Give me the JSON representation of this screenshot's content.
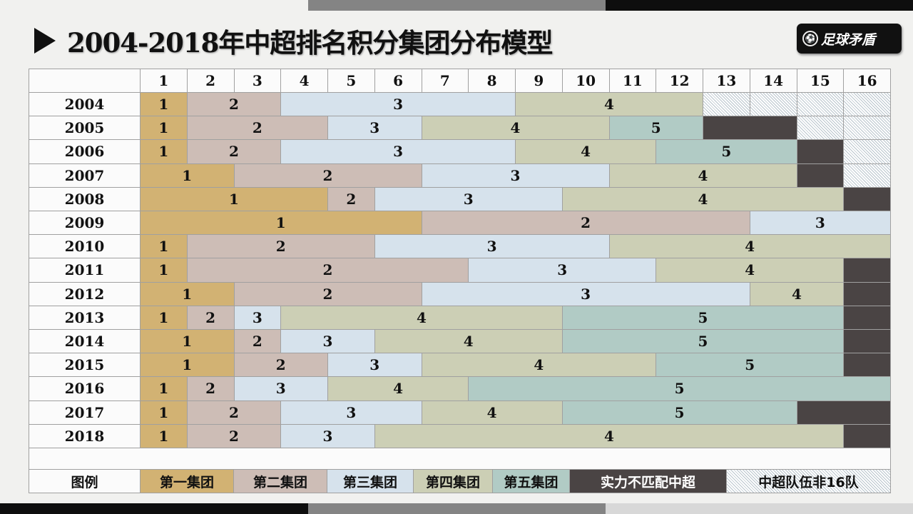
{
  "title": "2004-2018年中超排名积分集团分布模型",
  "logo": "足球矛盾",
  "colors": {
    "1": "#d2b273",
    "2": "#cdbdb6",
    "3": "#d6e2ec",
    "4": "#cccfb5",
    "5": "#b1cbc5",
    "dark": "#4a4444",
    "hatch": "hatched"
  },
  "columns": [
    "1",
    "2",
    "3",
    "4",
    "5",
    "6",
    "7",
    "8",
    "9",
    "10",
    "11",
    "12",
    "13",
    "14",
    "15",
    "16"
  ],
  "rows": [
    {
      "year": "2004",
      "segments": [
        [
          "1",
          1,
          1
        ],
        [
          "2",
          2,
          3
        ],
        [
          "3",
          4,
          8
        ],
        [
          "4",
          9,
          12
        ],
        [
          "hatch",
          13,
          13
        ],
        [
          "hatch",
          14,
          14
        ],
        [
          "hatch",
          15,
          15
        ],
        [
          "hatch",
          16,
          16
        ]
      ]
    },
    {
      "year": "2005",
      "segments": [
        [
          "1",
          1,
          1
        ],
        [
          "2",
          2,
          4
        ],
        [
          "3",
          5,
          6
        ],
        [
          "4",
          7,
          10
        ],
        [
          "5",
          11,
          12
        ],
        [
          "dark",
          13,
          14
        ],
        [
          "hatch",
          15,
          15
        ],
        [
          "hatch",
          16,
          16
        ]
      ]
    },
    {
      "year": "2006",
      "segments": [
        [
          "1",
          1,
          1
        ],
        [
          "2",
          2,
          3
        ],
        [
          "3",
          4,
          8
        ],
        [
          "4",
          9,
          11
        ],
        [
          "5",
          12,
          14
        ],
        [
          "dark",
          15,
          15
        ],
        [
          "hatch",
          16,
          16
        ]
      ]
    },
    {
      "year": "2007",
      "segments": [
        [
          "1",
          1,
          2
        ],
        [
          "2",
          3,
          6
        ],
        [
          "3",
          7,
          10
        ],
        [
          "4",
          11,
          14
        ],
        [
          "dark",
          15,
          15
        ],
        [
          "hatch",
          16,
          16
        ]
      ]
    },
    {
      "year": "2008",
      "segments": [
        [
          "1",
          1,
          4
        ],
        [
          "2",
          5,
          5
        ],
        [
          "3",
          6,
          9
        ],
        [
          "4",
          10,
          15
        ],
        [
          "dark",
          16,
          16
        ]
      ]
    },
    {
      "year": "2009",
      "segments": [
        [
          "1",
          1,
          6
        ],
        [
          "2",
          7,
          13
        ],
        [
          "3",
          14,
          16
        ]
      ]
    },
    {
      "year": "2010",
      "segments": [
        [
          "1",
          1,
          1
        ],
        [
          "2",
          2,
          5
        ],
        [
          "3",
          6,
          10
        ],
        [
          "4",
          11,
          16
        ]
      ]
    },
    {
      "year": "2011",
      "segments": [
        [
          "1",
          1,
          1
        ],
        [
          "2",
          2,
          7
        ],
        [
          "3",
          8,
          11
        ],
        [
          "4",
          12,
          15
        ],
        [
          "dark",
          16,
          16
        ]
      ]
    },
    {
      "year": "2012",
      "segments": [
        [
          "1",
          1,
          2
        ],
        [
          "2",
          3,
          6
        ],
        [
          "3",
          7,
          13
        ],
        [
          "4",
          14,
          15
        ],
        [
          "dark",
          16,
          16
        ]
      ]
    },
    {
      "year": "2013",
      "segments": [
        [
          "1",
          1,
          1
        ],
        [
          "2",
          2,
          2
        ],
        [
          "3",
          3,
          3
        ],
        [
          "4",
          4,
          9
        ],
        [
          "5",
          10,
          15
        ],
        [
          "dark",
          16,
          16
        ]
      ]
    },
    {
      "year": "2014",
      "segments": [
        [
          "1",
          1,
          2
        ],
        [
          "2",
          3,
          3
        ],
        [
          "3",
          4,
          5
        ],
        [
          "4",
          6,
          9
        ],
        [
          "5",
          10,
          15
        ],
        [
          "dark",
          16,
          16
        ]
      ]
    },
    {
      "year": "2015",
      "segments": [
        [
          "1",
          1,
          2
        ],
        [
          "2",
          3,
          4
        ],
        [
          "3",
          5,
          6
        ],
        [
          "4",
          7,
          11
        ],
        [
          "5",
          12,
          15
        ],
        [
          "dark",
          16,
          16
        ]
      ]
    },
    {
      "year": "2016",
      "segments": [
        [
          "1",
          1,
          1
        ],
        [
          "2",
          2,
          2
        ],
        [
          "3",
          3,
          4
        ],
        [
          "4",
          5,
          7
        ],
        [
          "5",
          8,
          16
        ]
      ]
    },
    {
      "year": "2017",
      "segments": [
        [
          "1",
          1,
          1
        ],
        [
          "2",
          2,
          3
        ],
        [
          "3",
          4,
          6
        ],
        [
          "4",
          7,
          9
        ],
        [
          "5",
          10,
          14
        ],
        [
          "dark",
          15,
          16
        ]
      ]
    },
    {
      "year": "2018",
      "segments": [
        [
          "1",
          1,
          1
        ],
        [
          "2",
          2,
          3
        ],
        [
          "3",
          4,
          5
        ],
        [
          "4",
          6,
          15
        ],
        [
          "dark",
          16,
          16
        ]
      ]
    }
  ],
  "legend": {
    "label": "图例",
    "items": [
      {
        "type": "1",
        "label": "第一集团"
      },
      {
        "type": "2",
        "label": "第二集团"
      },
      {
        "type": "3",
        "label": "第三集团"
      },
      {
        "type": "4",
        "label": "第四集团"
      },
      {
        "type": "5",
        "label": "第五集团"
      },
      {
        "type": "dark",
        "label": "实力不匹配中超"
      },
      {
        "type": "hatch",
        "label": "中超队伍非16队"
      }
    ]
  }
}
